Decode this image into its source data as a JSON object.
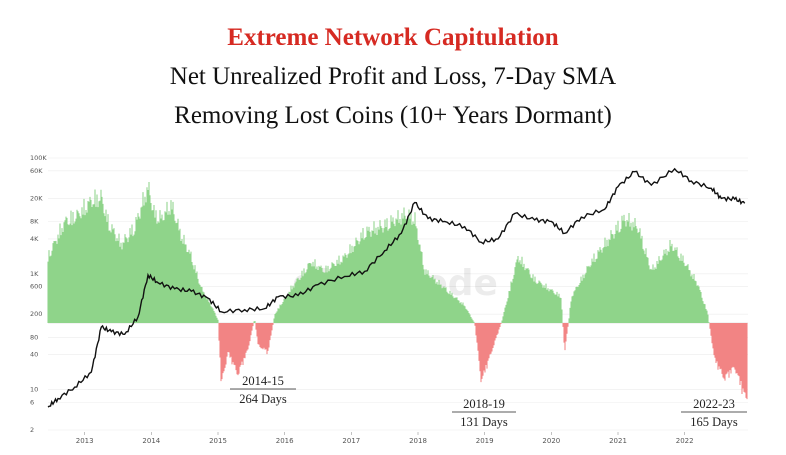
{
  "chart_data": {
    "type": "area",
    "title": "Extreme Network Capitulation",
    "subtitle_lines": [
      "Net Unrealized Profit and Loss, 7-Day SMA",
      "Removing Lost Coins (10+ Years Dormant)"
    ],
    "watermark": "glassnode",
    "x_range": [
      2012.45,
      2022.95
    ],
    "x_ticks": [
      "2013",
      "2014",
      "2015",
      "2016",
      "2017",
      "2018",
      "2019",
      "2020",
      "2021",
      "2022"
    ],
    "y_price_ticks": [
      "100K",
      "60K",
      "20K",
      "8K",
      "4K",
      "1K",
      "600",
      "200",
      "80",
      "40",
      "10",
      "6",
      "2"
    ],
    "colors": {
      "profit": "#8fd48a",
      "loss": "#f28484",
      "price": "#111111",
      "title": "#d62a22",
      "grid": "#ececec"
    },
    "nupl_series": [
      {
        "x": 2012.45,
        "y": 0.38
      },
      {
        "x": 2012.7,
        "y": 0.58
      },
      {
        "x": 2012.9,
        "y": 0.62
      },
      {
        "x": 2013.1,
        "y": 0.7
      },
      {
        "x": 2013.25,
        "y": 0.72
      },
      {
        "x": 2013.35,
        "y": 0.58
      },
      {
        "x": 2013.55,
        "y": 0.45
      },
      {
        "x": 2013.75,
        "y": 0.55
      },
      {
        "x": 2013.95,
        "y": 0.78
      },
      {
        "x": 2014.05,
        "y": 0.62
      },
      {
        "x": 2014.15,
        "y": 0.6
      },
      {
        "x": 2014.3,
        "y": 0.68
      },
      {
        "x": 2014.45,
        "y": 0.5
      },
      {
        "x": 2014.6,
        "y": 0.38
      },
      {
        "x": 2014.75,
        "y": 0.2
      },
      {
        "x": 2014.9,
        "y": 0.1
      },
      {
        "x": 2015.0,
        "y": 0.02
      },
      {
        "x": 2015.05,
        "y": -0.42
      },
      {
        "x": 2015.15,
        "y": -0.2
      },
      {
        "x": 2015.3,
        "y": -0.35
      },
      {
        "x": 2015.45,
        "y": -0.18
      },
      {
        "x": 2015.55,
        "y": 0.03
      },
      {
        "x": 2015.6,
        "y": -0.15
      },
      {
        "x": 2015.75,
        "y": -0.2
      },
      {
        "x": 2015.85,
        "y": 0.05
      },
      {
        "x": 2016.1,
        "y": 0.2
      },
      {
        "x": 2016.4,
        "y": 0.35
      },
      {
        "x": 2016.6,
        "y": 0.3
      },
      {
        "x": 2016.9,
        "y": 0.38
      },
      {
        "x": 2017.2,
        "y": 0.52
      },
      {
        "x": 2017.5,
        "y": 0.56
      },
      {
        "x": 2017.8,
        "y": 0.62
      },
      {
        "x": 2017.95,
        "y": 0.6
      },
      {
        "x": 2018.1,
        "y": 0.3
      },
      {
        "x": 2018.4,
        "y": 0.2
      },
      {
        "x": 2018.7,
        "y": 0.1
      },
      {
        "x": 2018.85,
        "y": 0.0
      },
      {
        "x": 2018.95,
        "y": -0.4
      },
      {
        "x": 2019.1,
        "y": -0.2
      },
      {
        "x": 2019.25,
        "y": 0.0
      },
      {
        "x": 2019.5,
        "y": 0.38
      },
      {
        "x": 2019.75,
        "y": 0.25
      },
      {
        "x": 2019.95,
        "y": 0.2
      },
      {
        "x": 2020.15,
        "y": 0.15
      },
      {
        "x": 2020.2,
        "y": -0.2
      },
      {
        "x": 2020.3,
        "y": 0.15
      },
      {
        "x": 2020.6,
        "y": 0.35
      },
      {
        "x": 2020.9,
        "y": 0.5
      },
      {
        "x": 2021.1,
        "y": 0.6
      },
      {
        "x": 2021.3,
        "y": 0.55
      },
      {
        "x": 2021.5,
        "y": 0.3
      },
      {
        "x": 2021.8,
        "y": 0.45
      },
      {
        "x": 2022.0,
        "y": 0.35
      },
      {
        "x": 2022.2,
        "y": 0.22
      },
      {
        "x": 2022.35,
        "y": 0.05
      },
      {
        "x": 2022.45,
        "y": -0.25
      },
      {
        "x": 2022.6,
        "y": -0.38
      },
      {
        "x": 2022.75,
        "y": -0.3
      },
      {
        "x": 2022.9,
        "y": -0.5
      }
    ],
    "price_series": [
      {
        "x": 2012.45,
        "y": 5
      },
      {
        "x": 2012.6,
        "y": 7
      },
      {
        "x": 2012.85,
        "y": 11
      },
      {
        "x": 2013.1,
        "y": 20
      },
      {
        "x": 2013.25,
        "y": 120
      },
      {
        "x": 2013.4,
        "y": 100
      },
      {
        "x": 2013.6,
        "y": 90
      },
      {
        "x": 2013.8,
        "y": 180
      },
      {
        "x": 2013.95,
        "y": 950
      },
      {
        "x": 2014.1,
        "y": 700
      },
      {
        "x": 2014.35,
        "y": 550
      },
      {
        "x": 2014.6,
        "y": 500
      },
      {
        "x": 2014.85,
        "y": 380
      },
      {
        "x": 2015.05,
        "y": 220
      },
      {
        "x": 2015.4,
        "y": 240
      },
      {
        "x": 2015.7,
        "y": 250
      },
      {
        "x": 2015.9,
        "y": 400
      },
      {
        "x": 2016.2,
        "y": 420
      },
      {
        "x": 2016.5,
        "y": 650
      },
      {
        "x": 2016.9,
        "y": 900
      },
      {
        "x": 2017.2,
        "y": 1100
      },
      {
        "x": 2017.5,
        "y": 2500
      },
      {
        "x": 2017.75,
        "y": 5000
      },
      {
        "x": 2017.95,
        "y": 17000
      },
      {
        "x": 2018.15,
        "y": 9000
      },
      {
        "x": 2018.4,
        "y": 8000
      },
      {
        "x": 2018.7,
        "y": 6500
      },
      {
        "x": 2018.95,
        "y": 3500
      },
      {
        "x": 2019.2,
        "y": 4000
      },
      {
        "x": 2019.45,
        "y": 11000
      },
      {
        "x": 2019.75,
        "y": 8500
      },
      {
        "x": 2020.0,
        "y": 8000
      },
      {
        "x": 2020.2,
        "y": 5000
      },
      {
        "x": 2020.45,
        "y": 9500
      },
      {
        "x": 2020.8,
        "y": 13000
      },
      {
        "x": 2021.0,
        "y": 32000
      },
      {
        "x": 2021.25,
        "y": 58000
      },
      {
        "x": 2021.5,
        "y": 34000
      },
      {
        "x": 2021.85,
        "y": 65000
      },
      {
        "x": 2022.1,
        "y": 40000
      },
      {
        "x": 2022.4,
        "y": 30000
      },
      {
        "x": 2022.55,
        "y": 20000
      },
      {
        "x": 2022.75,
        "y": 19500
      },
      {
        "x": 2022.9,
        "y": 16500
      }
    ],
    "annotations": [
      {
        "label": "2014-15",
        "duration": "264 Days"
      },
      {
        "label": "2018-19",
        "duration": "131 Days"
      },
      {
        "label": "2022-23",
        "duration": "165 Days"
      }
    ]
  }
}
